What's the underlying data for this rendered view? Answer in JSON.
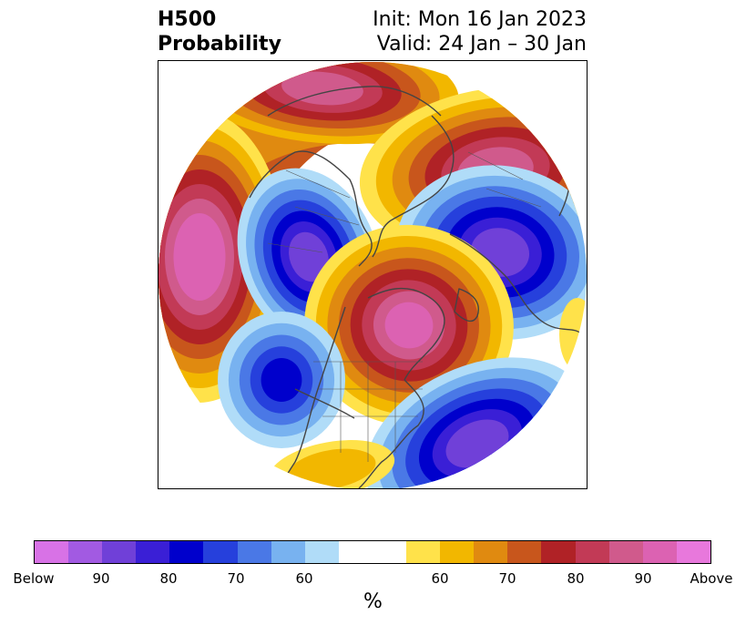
{
  "title": {
    "left_line1": "H500",
    "left_line2": "Probability",
    "right_line1": "Init: Mon 16 Jan 2023",
    "right_line2": "Valid: 24 Jan – 30 Jan"
  },
  "colorbar": {
    "colors": [
      "#d872e6",
      "#a25ae2",
      "#7040d8",
      "#3a1fd6",
      "#0000cc",
      "#2640dc",
      "#4a78e6",
      "#78b2f0",
      "#b0dcf8",
      "#ffffff",
      "#ffffff",
      "#ffe24a",
      "#f2b700",
      "#e08a10",
      "#c8561c",
      "#b02226",
      "#c23a56",
      "#d05a8c",
      "#dc62b2",
      "#e878dc"
    ],
    "labels": [
      "Below",
      "90",
      "80",
      "70",
      "60",
      "60",
      "70",
      "80",
      "90",
      "Above"
    ],
    "unit": "%"
  },
  "palette": {
    "white": "#ffffff",
    "blue_light": "#b0dcf8",
    "blue_mid": "#78b2f0",
    "blue": "#4a78e6",
    "blue_deep": "#2640dc",
    "navy": "#0000cc",
    "indigo": "#3a1fd6",
    "violet": "#7040d8",
    "purple": "#a25ae2",
    "yellow": "#ffe24a",
    "gold": "#f2b700",
    "orange": "#e08a10",
    "rust": "#c8561c",
    "red": "#b02226",
    "crimson": "#c23a56",
    "rose": "#d05a8c",
    "pink": "#dc62b2",
    "coast": "#444444"
  }
}
